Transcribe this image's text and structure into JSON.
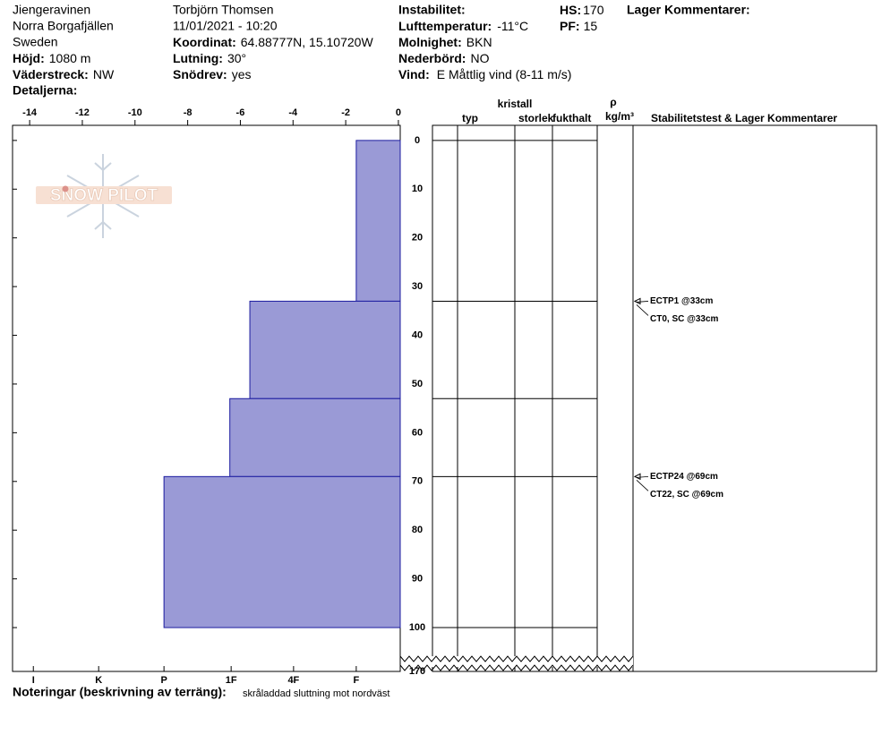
{
  "header": {
    "location": "Jiengeravinen",
    "range": "Norra Borgafjällen",
    "country": "Sweden",
    "elevation": {
      "label": "Höjd:",
      "value": "1080 m"
    },
    "aspect": {
      "label": "Väderstreck:",
      "value": "NW"
    },
    "details": {
      "label": "Detaljerna:"
    },
    "observer": "Torbjörn Thomsen",
    "datetime": "11/01/2021 - 10:20",
    "coordinates": {
      "label": "Koordinat:",
      "value": "64.88777N, 15.10720W"
    },
    "slope": {
      "label": "Lutning:",
      "value": "30°"
    },
    "wind_loading": {
      "label": "Snödrev:",
      "value": "yes"
    },
    "instability": {
      "label": "Instabilitet:"
    },
    "air_temp": {
      "label": "Lufttemperatur:",
      "value": "-11°C"
    },
    "sky": {
      "label": "Molnighet:",
      "value": "BKN"
    },
    "precip": {
      "label": "Nederbörd:",
      "value": "NO"
    },
    "wind": {
      "label": "Vind:",
      "value": "E Måttlig vind (8-11 m/s)"
    },
    "hs": {
      "label": "HS:",
      "value": "170"
    },
    "pf": {
      "label": "PF:",
      "value": "15"
    },
    "layer_comments": {
      "label": "Lager Kommentarer:"
    }
  },
  "logo": "SNOW PILOT",
  "chart_data": {
    "type": "layers",
    "xlim": [
      -14.65,
      0.07
    ],
    "xticks": [
      -14,
      -12,
      -10,
      -8,
      -6,
      -4,
      -2,
      0
    ],
    "hardness_ticks": [
      {
        "value": -13.86,
        "label": "I"
      },
      {
        "value": -11.38,
        "label": "K"
      },
      {
        "value": -8.9,
        "label": "P"
      },
      {
        "value": -6.35,
        "label": "1F"
      },
      {
        "value": -3.98,
        "label": "4F"
      },
      {
        "value": -1.6,
        "label": "F"
      }
    ],
    "ylim": [
      -3.1,
      109
    ],
    "yticks": [
      0,
      10,
      20,
      30,
      40,
      50,
      60,
      70,
      80,
      90,
      100
    ],
    "break_tick": 170,
    "color": "#9a9ad6",
    "layers": [
      {
        "top": 0,
        "bottom": 33,
        "hardness": -1.6
      },
      {
        "top": 33,
        "bottom": 53,
        "hardness": -5.64
      },
      {
        "top": 53,
        "bottom": 69,
        "hardness": -6.4
      },
      {
        "top": 69,
        "bottom": 100,
        "hardness": -8.9
      }
    ],
    "table_headers": {
      "type": "typ",
      "crystal": "kristall",
      "size": "storlek",
      "moisture": "fukthalt",
      "rho": "ρ",
      "density_unit": "kg/m³",
      "comments": "Stabilitetstest & Lager Kommentarer"
    },
    "tests": [
      {
        "depth": 33,
        "labels": [
          "ECTP1 @33cm",
          "CT0, SC @33cm"
        ]
      },
      {
        "depth": 69,
        "labels": [
          "ECTP24 @69cm",
          "CT22, SC @69cm"
        ]
      }
    ]
  },
  "notes": {
    "label": "Noteringar (beskrivning av terräng):",
    "value": "skråladdad sluttning mot nordväst"
  }
}
